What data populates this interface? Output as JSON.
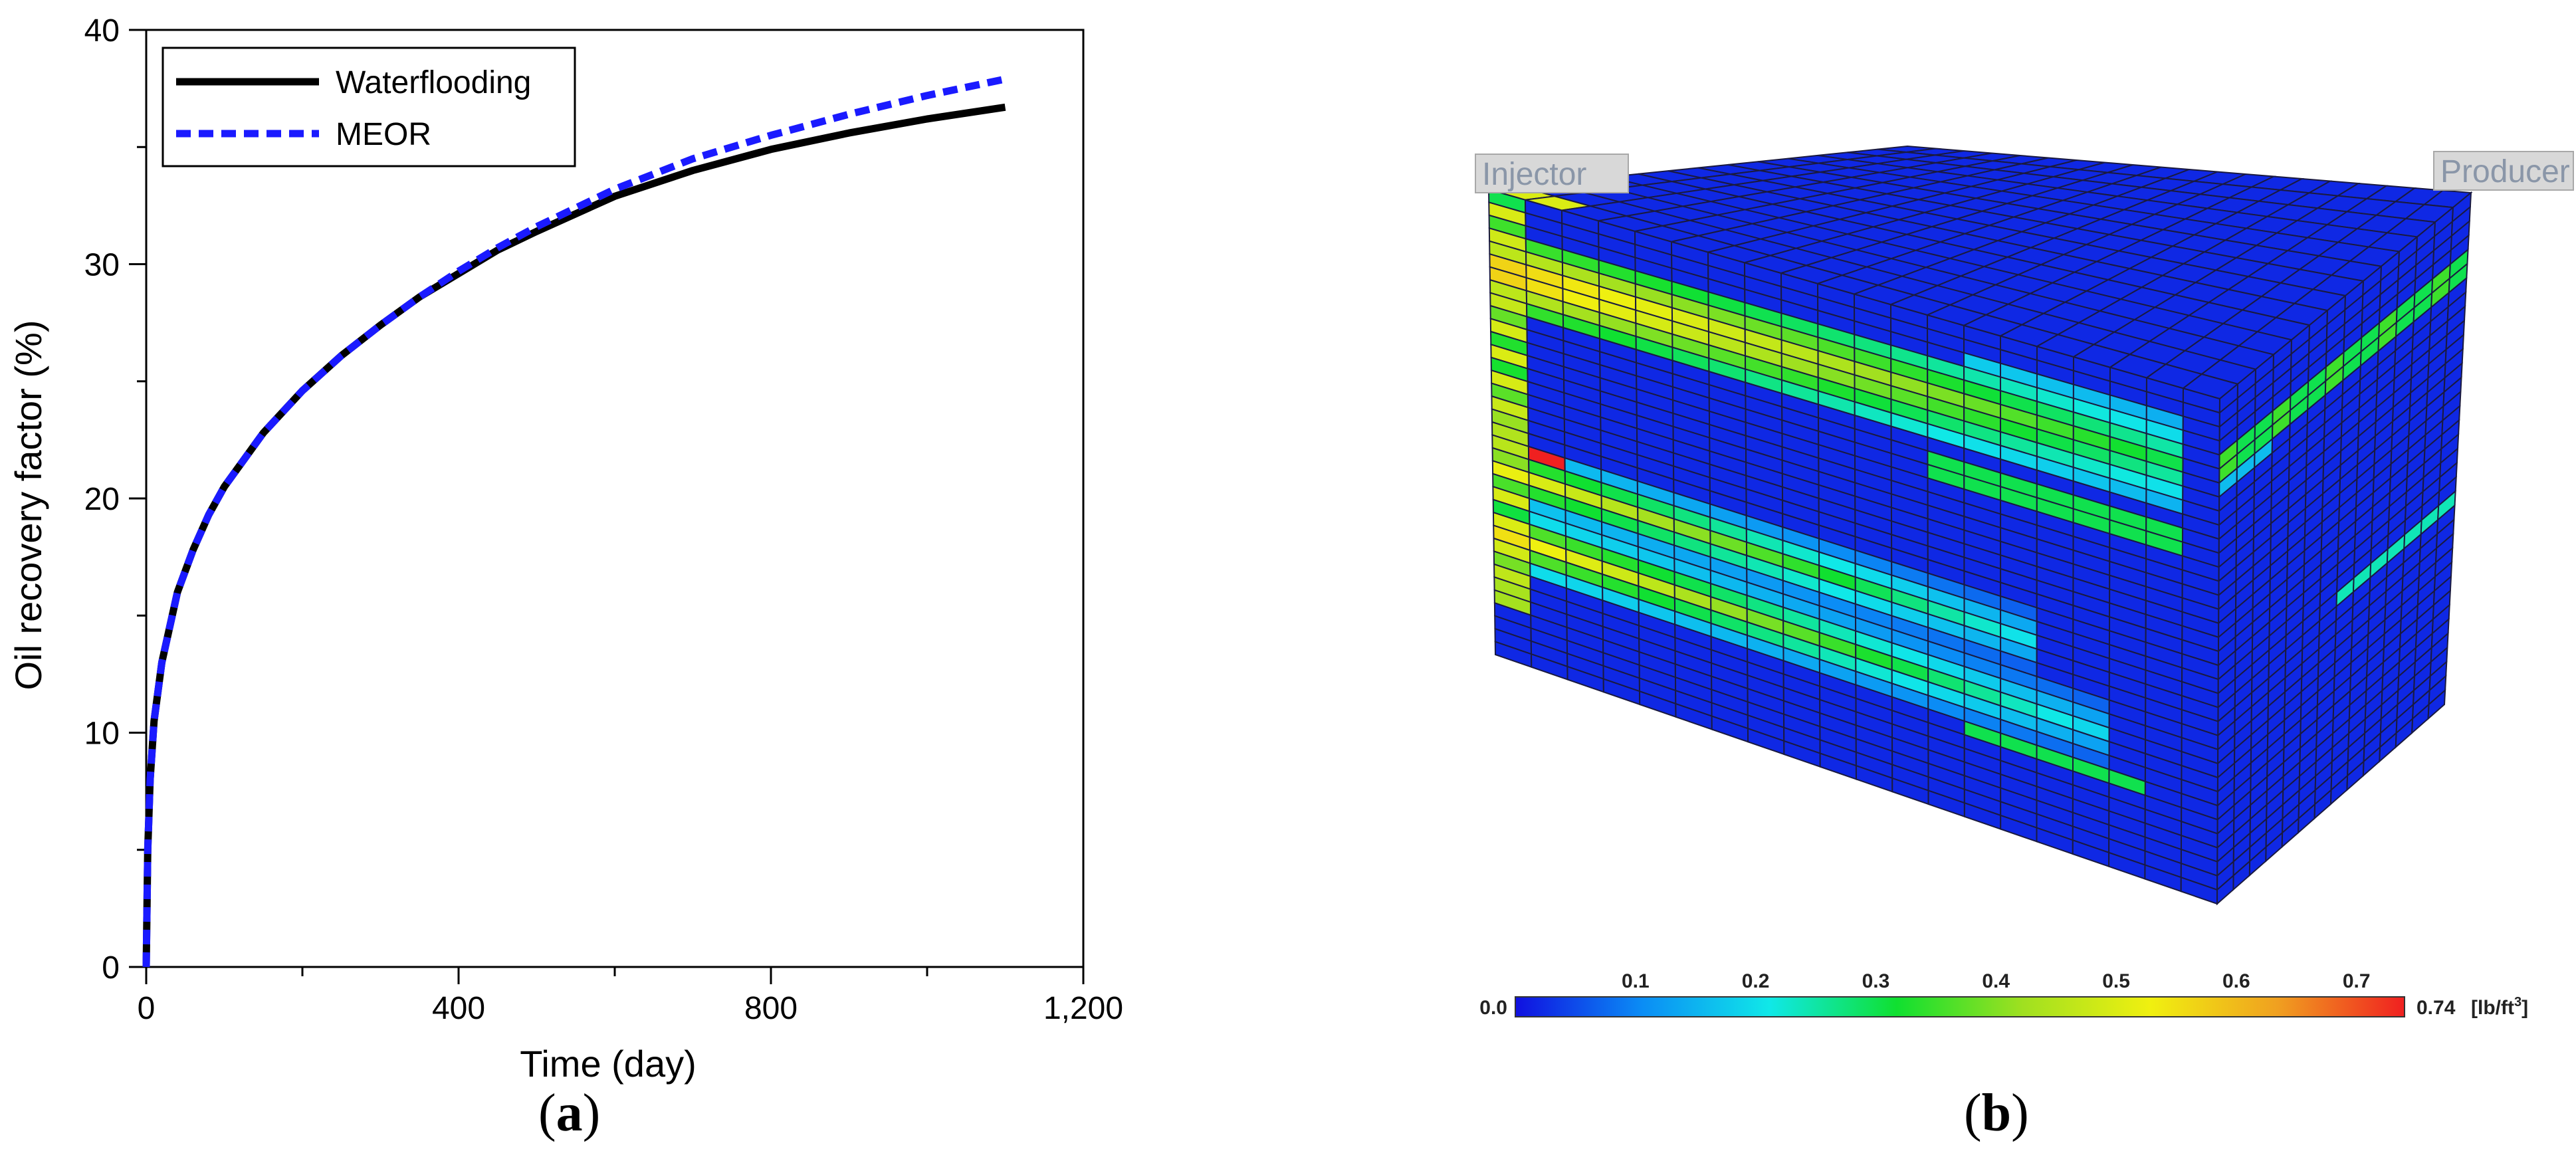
{
  "chart_data": [
    {
      "type": "line",
      "panel_label": "a",
      "xlabel": "Time (day)",
      "ylabel": "Oil recovery factor (%)",
      "xlim": [
        0,
        1200
      ],
      "ylim": [
        0,
        40
      ],
      "x_ticks": [
        0,
        400,
        800,
        1200
      ],
      "x_tick_labels": [
        "0",
        "400",
        "800",
        "1,200"
      ],
      "x_minor_step": 200,
      "y_ticks": [
        0,
        10,
        20,
        30,
        40
      ],
      "y_tick_labels": [
        "0",
        "10",
        "20",
        "30",
        "40"
      ],
      "y_minor_step": 5,
      "grid": false,
      "legend_position": "top-left",
      "series": [
        {
          "name": "Waterflooding",
          "color": "#000000",
          "style": "solid",
          "x": [
            0,
            2,
            5,
            10,
            20,
            40,
            60,
            80,
            100,
            150,
            200,
            250,
            300,
            350,
            400,
            450,
            500,
            600,
            700,
            800,
            900,
            1000,
            1100
          ],
          "y": [
            0,
            5,
            8,
            10.5,
            13,
            16,
            17.8,
            19.3,
            20.5,
            22.8,
            24.6,
            26.1,
            27.4,
            28.6,
            29.6,
            30.6,
            31.4,
            32.9,
            34.0,
            34.9,
            35.6,
            36.2,
            36.7
          ]
        },
        {
          "name": "MEOR",
          "color": "#1a1aff",
          "style": "dashed",
          "x": [
            0,
            2,
            5,
            10,
            20,
            40,
            60,
            80,
            100,
            150,
            200,
            250,
            300,
            350,
            400,
            450,
            500,
            600,
            700,
            800,
            900,
            1000,
            1100
          ],
          "y": [
            0,
            5,
            8,
            10.5,
            13,
            16,
            17.8,
            19.3,
            20.5,
            22.8,
            24.6,
            26.1,
            27.4,
            28.6,
            29.7,
            30.7,
            31.6,
            33.2,
            34.5,
            35.5,
            36.4,
            37.2,
            37.9
          ]
        }
      ]
    },
    {
      "type": "heatmap",
      "panel_label": "b",
      "well_labels": {
        "injector": "Injector",
        "producer": "Producer"
      },
      "colorbar": {
        "min_label": "0.0",
        "max_label": "0.74",
        "unit_prefix": "[lb/ft",
        "unit_power": "3",
        "unit_suffix": "]",
        "min": 0.0,
        "max": 0.74,
        "ticks": [
          0.1,
          0.2,
          0.3,
          0.4,
          0.5,
          0.6,
          0.7
        ],
        "tick_labels": [
          "0.1",
          "0.2",
          "0.3",
          "0.4",
          "0.5",
          "0.6",
          "0.7"
        ],
        "colors": [
          "#1010e0",
          "#0b8df5",
          "#10e8e8",
          "#10e030",
          "#a0e020",
          "#f0f010",
          "#f0a020",
          "#f02020"
        ]
      }
    }
  ]
}
